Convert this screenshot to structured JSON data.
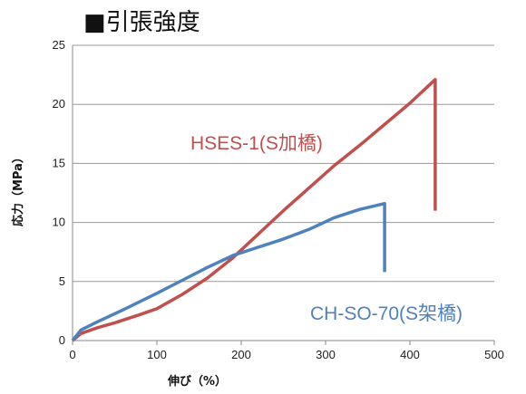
{
  "chart_data": {
    "type": "line",
    "title": "■引張強度",
    "xlabel": "伸び（%）",
    "ylabel": "応力（MPa）",
    "xlim": [
      0,
      500
    ],
    "ylim": [
      0,
      25
    ],
    "x_ticks": [
      "0",
      "100",
      "200",
      "300",
      "400",
      "500"
    ],
    "y_ticks": [
      "0",
      "5",
      "10",
      "15",
      "20",
      "25"
    ],
    "grid": "horizontal",
    "legend": "none",
    "series": [
      {
        "name": "HSES-1(S加橋)",
        "color": "#c0504d",
        "x": [
          0,
          10,
          30,
          50,
          80,
          100,
          130,
          160,
          190,
          220,
          250,
          280,
          310,
          340,
          370,
          400,
          430,
          430,
          430
        ],
        "y": [
          0,
          0.6,
          1.1,
          1.5,
          2.2,
          2.7,
          3.9,
          5.3,
          7.0,
          9.0,
          11.0,
          12.9,
          14.8,
          16.5,
          18.3,
          20.1,
          22.1,
          16.0,
          11.0
        ]
      },
      {
        "name": "CH-SO-70(S架橋)",
        "color": "#4f81bd",
        "x": [
          0,
          10,
          30,
          60,
          100,
          130,
          160,
          190,
          220,
          250,
          280,
          310,
          340,
          370,
          370,
          370
        ],
        "y": [
          0,
          0.9,
          1.6,
          2.6,
          4.0,
          5.1,
          6.2,
          7.2,
          7.9,
          8.6,
          9.4,
          10.4,
          11.1,
          11.6,
          8.5,
          5.8
        ]
      }
    ],
    "annotations": [
      {
        "text": "HSES-1(S加橋)",
        "color": "#c0504d"
      },
      {
        "text": "CH-SO-70(S架橋)",
        "color": "#4f81bd"
      }
    ]
  }
}
